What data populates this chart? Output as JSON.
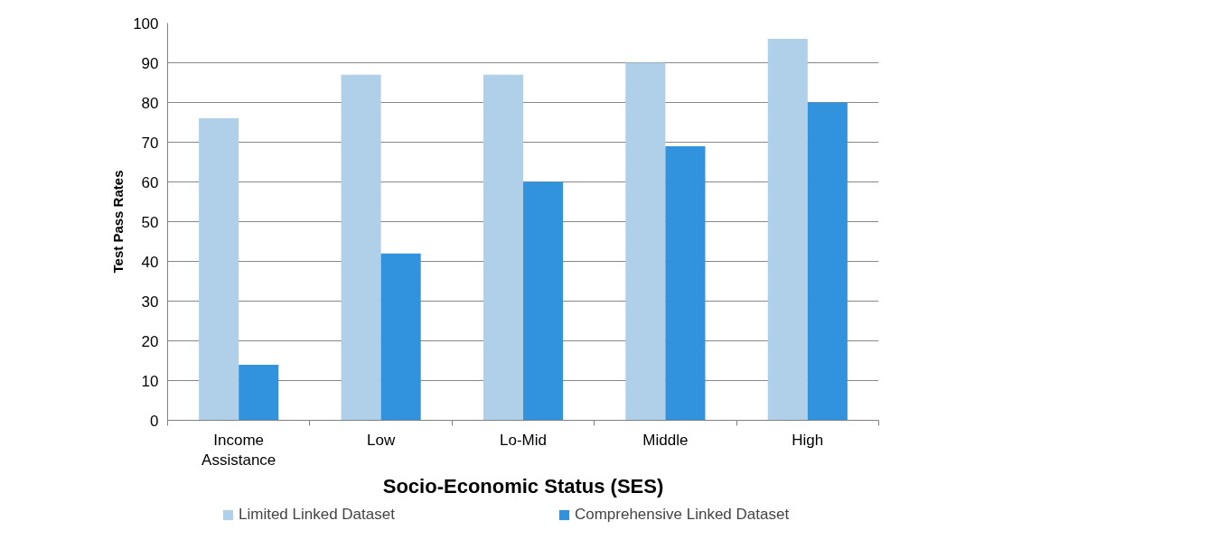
{
  "chart_data": {
    "type": "bar",
    "xlabel": "Socio-Economic Status (SES)",
    "ylabel": "Test Pass Rates",
    "categories": [
      "Income\nAssistance",
      "Low",
      "Lo-Mid",
      "Middle",
      "High"
    ],
    "series": [
      {
        "name": "Limited Linked Dataset",
        "color": "#b0cfe8",
        "values": [
          76,
          87,
          87,
          90,
          96
        ]
      },
      {
        "name": "Comprehensive Linked Dataset",
        "color": "#3193dd",
        "values": [
          14,
          42,
          60,
          69,
          80
        ]
      }
    ],
    "ylim": [
      0,
      100
    ],
    "yticks": [
      0,
      10,
      20,
      30,
      40,
      50,
      60,
      70,
      80,
      90,
      100
    ],
    "grid": "y",
    "legend": "bottom"
  }
}
